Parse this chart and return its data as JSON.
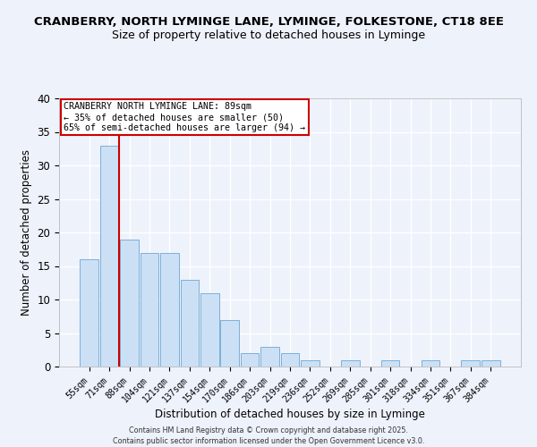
{
  "title1": "CRANBERRY, NORTH LYMINGE LANE, LYMINGE, FOLKESTONE, CT18 8EE",
  "title2": "Size of property relative to detached houses in Lyminge",
  "xlabel": "Distribution of detached houses by size in Lyminge",
  "ylabel": "Number of detached properties",
  "bar_labels": [
    "55sqm",
    "71sqm",
    "88sqm",
    "104sqm",
    "121sqm",
    "137sqm",
    "154sqm",
    "170sqm",
    "186sqm",
    "203sqm",
    "219sqm",
    "236sqm",
    "252sqm",
    "269sqm",
    "285sqm",
    "301sqm",
    "318sqm",
    "334sqm",
    "351sqm",
    "367sqm",
    "384sqm"
  ],
  "bar_values": [
    16,
    33,
    19,
    17,
    17,
    13,
    11,
    7,
    2,
    3,
    2,
    1,
    0,
    1,
    0,
    1,
    0,
    1,
    0,
    1,
    1
  ],
  "bar_color": "#cce0f5",
  "bar_edge_color": "#7ab0d8",
  "vline_color": "#cc0000",
  "ylim": [
    0,
    40
  ],
  "annotation_text": "CRANBERRY NORTH LYMINGE LANE: 89sqm\n← 35% of detached houses are smaller (50)\n65% of semi-detached houses are larger (94) →",
  "annotation_box_color": "#ffffff",
  "annotation_box_edge": "#cc0000",
  "background_color": "#eef2fb",
  "grid_color": "#ffffff",
  "footnote1": "Contains HM Land Registry data © Crown copyright and database right 2025.",
  "footnote2": "Contains public sector information licensed under the Open Government Licence v3.0."
}
